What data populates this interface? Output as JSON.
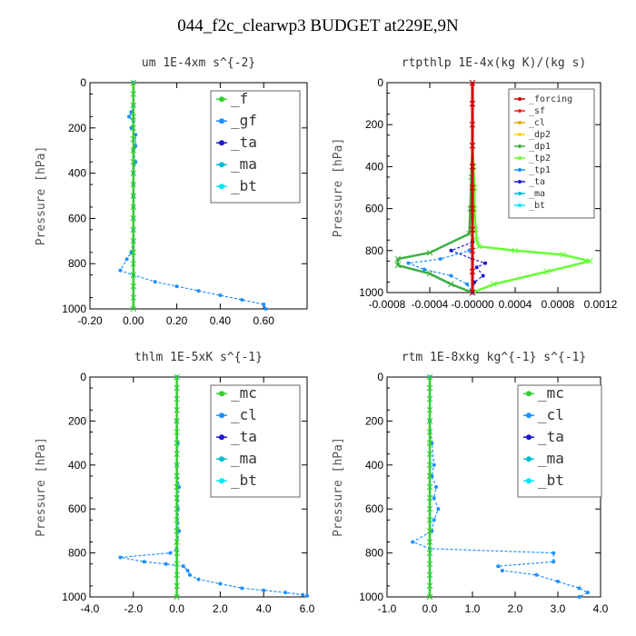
{
  "page_title": "044_f2c_clearwp3  BUDGET at229E,9N",
  "colors": {
    "_f": "#33cc33",
    "_gf": "#1e90ff",
    "_ta": "#1a1acc",
    "_ma": "#00bcd4",
    "_bt": "#00e5ff",
    "_forcing": "#cc0000",
    "_sf": "#ff2222",
    "_cl": "#e6a800",
    "_dp2": "#ffd700",
    "_dp1": "#3cb043",
    "_tp2": "#66ff33",
    "_tp1": "#1e90ff",
    "_mc": "#33cc33",
    "_cl_blue": "#1e90ff"
  },
  "chart_data": [
    {
      "type": "line",
      "title": "um   1E-4xm s^{-2}",
      "ylabel": "Pressure [hPa]",
      "xlim": [
        -0.2,
        0.8
      ],
      "ylim": [
        1000,
        0
      ],
      "xticks": [
        "-0.20",
        "0.00",
        "0.20",
        "0.40",
        "0.60"
      ],
      "xtick_values": [
        -0.2,
        0.0,
        0.2,
        0.4,
        0.6
      ],
      "yticks": [
        "0",
        "200",
        "400",
        "600",
        "800",
        "1000"
      ],
      "ytick_values": [
        0,
        200,
        400,
        600,
        800,
        1000
      ],
      "legend": {
        "entries": [
          "_f",
          "_gf",
          "_ta",
          "_ma",
          "_bt"
        ],
        "placement": "top-right",
        "font": 16
      },
      "series": [
        {
          "name": "_gf",
          "color": "#1e90ff",
          "dashed": true,
          "x": [
            0.0,
            0.0,
            -0.01,
            -0.02,
            0.0,
            -0.01,
            0.01,
            0.01,
            0.0,
            0.01,
            0.0,
            0.0,
            0.0,
            0.0,
            0.0,
            0.0,
            0.0,
            -0.01,
            -0.03,
            -0.06,
            0.0,
            0.1,
            0.2,
            0.3,
            0.4,
            0.5,
            0.6,
            0.61
          ],
          "y": [
            0,
            100,
            130,
            150,
            170,
            200,
            230,
            280,
            300,
            350,
            400,
            450,
            500,
            550,
            600,
            650,
            700,
            750,
            780,
            830,
            850,
            880,
            900,
            920,
            940,
            960,
            980,
            1000
          ]
        },
        {
          "name": "_f",
          "color": "#33cc33",
          "dashed": false,
          "x": [
            0,
            0,
            0,
            0,
            0,
            0,
            0,
            0,
            0,
            0,
            0,
            0,
            0,
            0,
            0,
            0,
            0,
            0,
            0,
            0,
            0
          ],
          "y": [
            0,
            50,
            100,
            150,
            200,
            250,
            300,
            350,
            400,
            450,
            500,
            550,
            600,
            650,
            700,
            750,
            800,
            850,
            900,
            950,
            1000
          ]
        }
      ]
    },
    {
      "type": "line",
      "title": "rtpthlp   1E-4x(kg K)/(kg s)",
      "ylabel": "Pressure [hPa]",
      "xlim": [
        -0.0008,
        0.0012
      ],
      "ylim": [
        1000,
        0
      ],
      "xticks": [
        "-0.0008",
        "-0.0004",
        "-0.00000",
        "0.0004",
        "0.0008",
        "0.0012"
      ],
      "xtick_values": [
        -0.0008,
        -0.0004,
        0.0,
        0.0004,
        0.0008,
        0.0012
      ],
      "yticks": [
        "0",
        "200",
        "400",
        "600",
        "800",
        "1000"
      ],
      "ytick_values": [
        0,
        200,
        400,
        600,
        800,
        1000
      ],
      "legend": {
        "entries": [
          "_forcing",
          "_sf",
          "_cl",
          "_dp2",
          "_dp1",
          "_tp2",
          "_tp1",
          "_ta",
          "_ma",
          "_bt"
        ],
        "placement": "top-right",
        "font": 10
      },
      "series": [
        {
          "name": "_tp2",
          "color": "#66ff33",
          "dashed": false,
          "x": [
            0.0,
            1e-05,
            2e-05,
            2e-05,
            3e-05,
            4e-05,
            6e-05,
            0.0004,
            0.00085,
            0.0011,
            0.0007,
            0.0002,
            0.0
          ],
          "y": [
            300,
            400,
            500,
            600,
            700,
            750,
            780,
            800,
            820,
            850,
            900,
            960,
            1000
          ]
        },
        {
          "name": "_dp1",
          "color": "#3cb043",
          "dashed": false,
          "x": [
            0.0,
            -1e-05,
            -2e-05,
            -3e-05,
            -0.0004,
            -0.0007,
            -0.0007,
            -0.0004,
            -0.0002,
            0.0
          ],
          "y": [
            300,
            450,
            600,
            720,
            810,
            840,
            870,
            910,
            960,
            1000
          ]
        },
        {
          "name": "_tp1",
          "color": "#1e90ff",
          "dashed": true,
          "x": [
            0.0,
            -3e-05,
            -0.0003,
            -0.0006,
            -0.00045,
            -0.0002,
            -5e-05,
            0.0
          ],
          "y": [
            750,
            800,
            840,
            860,
            890,
            920,
            960,
            1000
          ]
        },
        {
          "name": "_ta",
          "color": "#1a1acc",
          "dashed": true,
          "x": [
            0.0,
            -0.0002,
            0.0,
            0.00012,
            4e-05,
            0.0001,
            2e-05,
            0.0
          ],
          "y": [
            760,
            800,
            840,
            860,
            880,
            920,
            950,
            1000
          ]
        },
        {
          "name": "_forcing",
          "color": "#cc0000",
          "dashed": false,
          "width": 3,
          "x": [
            0,
            0,
            0,
            0,
            0,
            0,
            0,
            0,
            0,
            0,
            0
          ],
          "y": [
            0,
            100,
            200,
            300,
            400,
            500,
            600,
            700,
            800,
            900,
            1000
          ]
        }
      ]
    },
    {
      "type": "line",
      "title": "thlm   1E-5xK s^{-1}",
      "ylabel": "Pressure [hPa]",
      "xlim": [
        -4.0,
        6.0
      ],
      "ylim": [
        1000,
        0
      ],
      "xticks": [
        "-4.0",
        "-2.0",
        "0.0",
        "2.0",
        "4.0",
        "6.0"
      ],
      "xtick_values": [
        -4.0,
        -2.0,
        0.0,
        2.0,
        4.0,
        6.0
      ],
      "yticks": [
        "0",
        "200",
        "400",
        "600",
        "800",
        "1000"
      ],
      "ytick_values": [
        0,
        200,
        400,
        600,
        800,
        1000
      ],
      "legend": {
        "entries": [
          "_mc",
          "_cl",
          "_ta",
          "_ma",
          "_bt"
        ],
        "placement": "top-right",
        "font": 16
      },
      "series": [
        {
          "name": "_cl",
          "color": "#1e90ff",
          "dashed": true,
          "x": [
            0.0,
            0.0,
            0.05,
            0.0,
            0.1,
            0.05,
            0.1,
            0.0,
            -0.3,
            -2.6,
            -1.5,
            -0.5,
            0.3,
            0.5,
            0.6,
            1.0,
            2.0,
            3.0,
            4.0,
            5.0,
            5.8,
            6.0
          ],
          "y": [
            0,
            200,
            300,
            400,
            500,
            600,
            700,
            780,
            800,
            820,
            840,
            850,
            860,
            880,
            900,
            920,
            940,
            960,
            970,
            980,
            990,
            995
          ]
        },
        {
          "name": "_mc",
          "color": "#33cc33",
          "dashed": false,
          "x": [
            0,
            0,
            0,
            0,
            0,
            0,
            0,
            0,
            0,
            0,
            0,
            0,
            0,
            0,
            0,
            0,
            0,
            0,
            0,
            0,
            0
          ],
          "y": [
            0,
            50,
            100,
            150,
            200,
            250,
            300,
            350,
            400,
            450,
            500,
            550,
            600,
            650,
            700,
            750,
            800,
            850,
            900,
            950,
            1000
          ]
        }
      ]
    },
    {
      "type": "line",
      "title": "rtm   1E-8xkg kg^{-1} s^{-1}",
      "ylabel": "Pressure [hPa]",
      "xlim": [
        -1.0,
        4.0
      ],
      "ylim": [
        1000,
        0
      ],
      "xticks": [
        "-1.0",
        "0.0",
        "1.0",
        "2.0",
        "3.0",
        "4.0"
      ],
      "xtick_values": [
        -1.0,
        0.0,
        1.0,
        2.0,
        3.0,
        4.0
      ],
      "yticks": [
        "0",
        "200",
        "400",
        "600",
        "800",
        "1000"
      ],
      "ytick_values": [
        0,
        200,
        400,
        600,
        800,
        1000
      ],
      "legend": {
        "entries": [
          "_mc",
          "_cl",
          "_ta",
          "_ma",
          "_bt"
        ],
        "placement": "top-right",
        "font": 16
      },
      "series": [
        {
          "name": "_cl",
          "color": "#1e90ff",
          "dashed": true,
          "x": [
            0.0,
            0.0,
            0.05,
            0.1,
            0.05,
            0.15,
            0.1,
            0.2,
            0.1,
            0.05,
            -0.4,
            0.0,
            2.9,
            2.9,
            1.6,
            1.7,
            2.5,
            3.0,
            3.5,
            3.7,
            3.5
          ],
          "y": [
            0,
            200,
            300,
            400,
            450,
            500,
            550,
            600,
            650,
            700,
            750,
            780,
            800,
            840,
            860,
            880,
            900,
            930,
            960,
            980,
            1000
          ]
        },
        {
          "name": "_mc",
          "color": "#33cc33",
          "dashed": false,
          "x": [
            0,
            0,
            0,
            0,
            0,
            0,
            0,
            0,
            0,
            0,
            0,
            0,
            0,
            0,
            0,
            0,
            0,
            0,
            0,
            0,
            0
          ],
          "y": [
            0,
            50,
            100,
            150,
            200,
            250,
            300,
            350,
            400,
            450,
            500,
            550,
            600,
            650,
            700,
            750,
            800,
            850,
            900,
            950,
            1000
          ]
        }
      ]
    }
  ]
}
